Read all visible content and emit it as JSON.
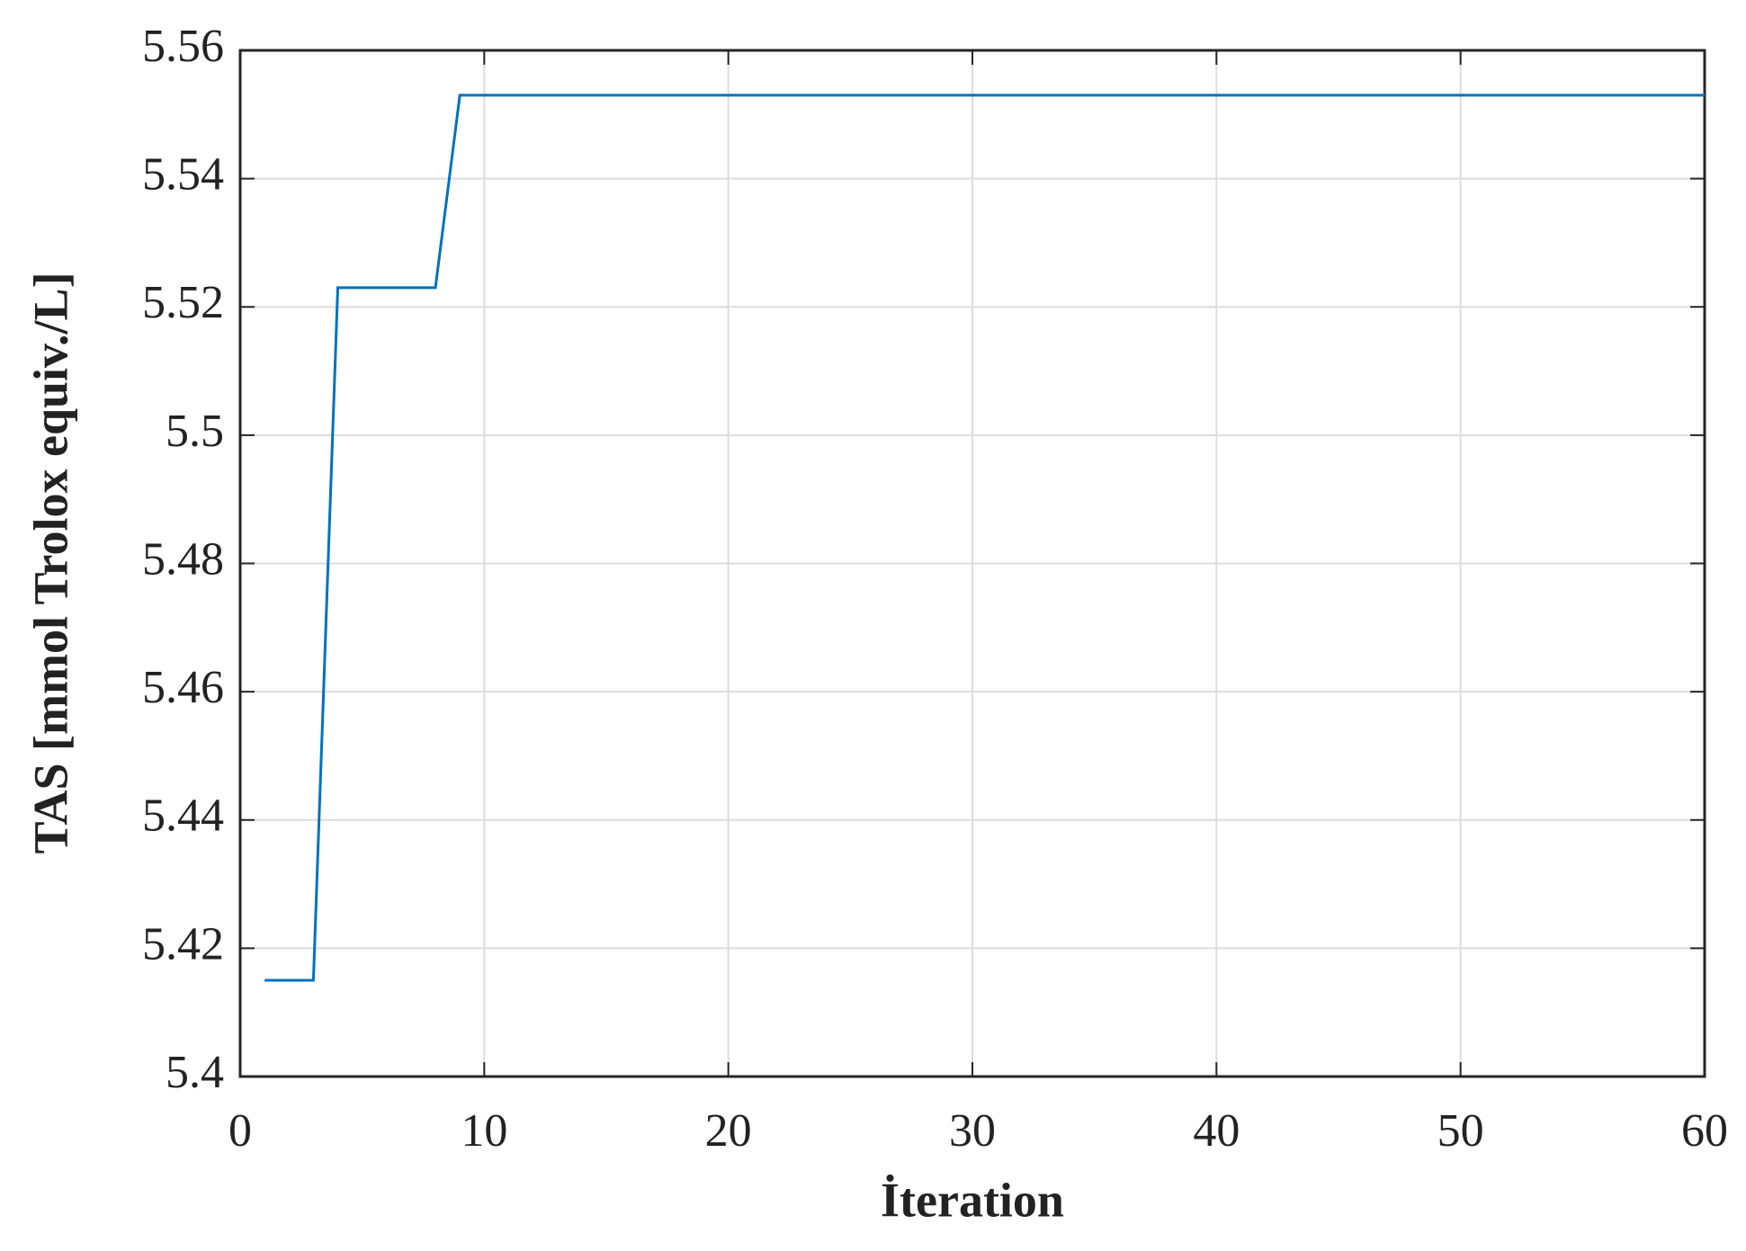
{
  "chart_data": {
    "type": "line",
    "xlabel": "İteration",
    "ylabel": "TAS [mmol Trolox equiv./L]",
    "x": [
      1,
      3,
      4,
      8,
      9,
      60
    ],
    "series": [
      {
        "name": "TAS",
        "color": "#0072bd",
        "values": [
          5.415,
          5.415,
          5.523,
          5.523,
          5.553,
          5.553
        ]
      }
    ],
    "xlim": [
      0,
      60
    ],
    "xticks": [
      0,
      10,
      20,
      30,
      40,
      50,
      60
    ],
    "ylim": [
      5.4,
      5.56
    ],
    "yticks": [
      5.4,
      5.42,
      5.44,
      5.46,
      5.48,
      5.5,
      5.52,
      5.54,
      5.56
    ],
    "grid": true
  }
}
